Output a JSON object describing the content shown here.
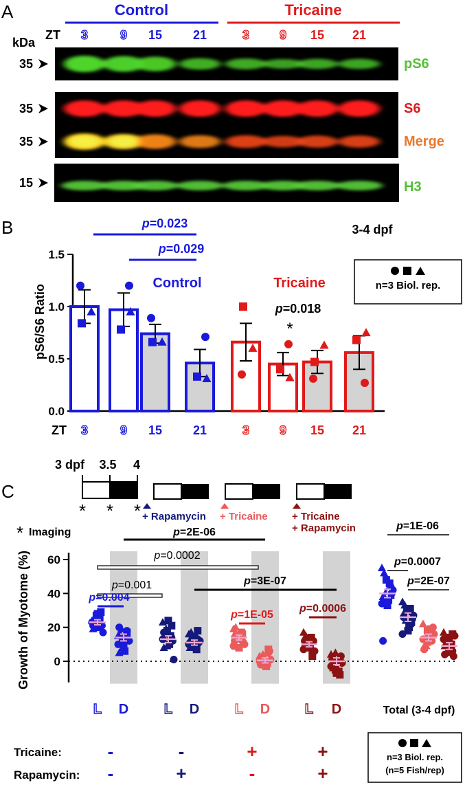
{
  "colors": {
    "control": "#1a1adb",
    "tricaine": "#e01a1a",
    "navy": "#151a7a",
    "salmon": "#ea5b5b",
    "darkred": "#8b1212",
    "green": "#55c13a",
    "merge_orange": "#e9782a",
    "h3_green": "#52c033",
    "gray_bg": "#d3d3d3",
    "mean_pink": "#f0a7cf"
  },
  "panel_a": {
    "letter": "A",
    "control_header": "Control",
    "tricaine_header": "Tricaine",
    "kda": "kDa",
    "zt": "ZT",
    "lanes": [
      {
        "label": "3",
        "group": "control",
        "outline": true
      },
      {
        "label": "9",
        "group": "control",
        "outline": true
      },
      {
        "label": "15",
        "group": "control",
        "outline": false
      },
      {
        "label": "21",
        "group": "control",
        "outline": false
      },
      {
        "label": "3",
        "group": "tricaine",
        "outline": true
      },
      {
        "label": "9",
        "group": "tricaine",
        "outline": true
      },
      {
        "label": "15",
        "group": "tricaine",
        "outline": false
      },
      {
        "label": "21",
        "group": "tricaine",
        "outline": false
      }
    ],
    "blots": [
      {
        "size": "35",
        "name": "pS6",
        "color": "#55c13a"
      },
      {
        "size": "35",
        "name": "S6",
        "color": "#e01a1a"
      },
      {
        "size": "35",
        "name": "Merge",
        "color": "#e9782a"
      },
      {
        "size": "15",
        "name": "H3",
        "color": "#52c033"
      }
    ]
  },
  "panel_b": {
    "letter": "B",
    "stage": "3-4 dpf",
    "legend_text": "n=3 Biol. rep.",
    "control_label": "Control",
    "tricaine_label": "Tricaine",
    "zt": "ZT",
    "yticks": [
      "0.0",
      "0.5",
      "1.0",
      "1.5"
    ],
    "sig": [
      {
        "text": "p=0.023"
      },
      {
        "text": "p=0.029"
      },
      {
        "text": "p=0.018"
      }
    ],
    "star": "*"
  },
  "panel_c": {
    "letter": "C",
    "timeline": {
      "t0": "3 dpf",
      "t1": "3.5",
      "t2": "4"
    },
    "treatments": [
      "+ Rapamycin",
      "+ Tricaine",
      "+ Tricaine",
      "+ Rapamycin"
    ],
    "imaging_label": "Imaging",
    "yticks": [
      "0",
      "20",
      "40",
      "60"
    ],
    "xlabels": [
      "L",
      "D",
      "L",
      "D",
      "L",
      "D",
      "L",
      "D"
    ],
    "total_label": "Total (3-4 dpf)",
    "tricaine_row": "Tricaine:",
    "rapamycin_row": "Rapamycin:",
    "tricaine_signs": [
      "-",
      "-",
      "+",
      "+"
    ],
    "rapamycin_signs": [
      "-",
      "+",
      "-",
      "+"
    ],
    "legend_line1": "n=3 Biol. rep.",
    "legend_line2": "(n=5 Fish/rep)",
    "sig": [
      {
        "text": "p=2E-06"
      },
      {
        "text": "p=0.0002"
      },
      {
        "text": "p=0.001"
      },
      {
        "text": "p=0.004"
      },
      {
        "text": "p=3E-07"
      },
      {
        "text": "p=1E-05"
      },
      {
        "text": "p=0.0006"
      },
      {
        "text": "p=1E-06"
      },
      {
        "text": "p=0.0007"
      },
      {
        "text": "p=2E-07"
      }
    ]
  },
  "chart_data": [
    {
      "type": "bar",
      "title": "3-4 dpf",
      "xlabel": "ZT",
      "ylabel": "pS6/S6 Ratio",
      "ylim": [
        0,
        1.5
      ],
      "categories": [
        "3",
        "9",
        "15",
        "21",
        "3",
        "9",
        "15",
        "21"
      ],
      "series": [
        {
          "name": "Control",
          "values": [
            1.0,
            0.97,
            0.74,
            0.46,
            null,
            null,
            null,
            null
          ],
          "sem": [
            0.16,
            0.16,
            0.09,
            0.13,
            null,
            null,
            null,
            null
          ]
        },
        {
          "name": "Tricaine",
          "values": [
            null,
            null,
            null,
            null,
            0.66,
            0.45,
            0.47,
            0.56
          ],
          "sem": [
            null,
            null,
            null,
            null,
            0.18,
            0.11,
            0.11,
            0.16
          ]
        }
      ],
      "points": [
        [
          {
            "shape": "circle",
            "y": 1.2
          },
          {
            "shape": "square",
            "y": 0.84
          },
          {
            "shape": "triangle",
            "y": 0.95
          }
        ],
        [
          {
            "shape": "circle",
            "y": 1.2
          },
          {
            "shape": "square",
            "y": 0.78
          },
          {
            "shape": "triangle",
            "y": 0.95
          }
        ],
        [
          {
            "shape": "circle",
            "y": 0.89
          },
          {
            "shape": "square",
            "y": 0.66
          },
          {
            "shape": "triangle",
            "y": 0.66
          }
        ],
        [
          {
            "shape": "circle",
            "y": 0.71
          },
          {
            "shape": "square",
            "y": 0.33
          },
          {
            "shape": "triangle",
            "y": 0.31
          }
        ],
        [
          {
            "shape": "circle",
            "y": 0.35
          },
          {
            "shape": "square",
            "y": 1.0
          },
          {
            "shape": "triangle",
            "y": 0.6
          }
        ],
        [
          {
            "shape": "circle",
            "y": 0.64
          },
          {
            "shape": "square",
            "y": 0.4
          },
          {
            "shape": "triangle",
            "y": 0.32
          }
        ],
        [
          {
            "shape": "circle",
            "y": 0.31
          },
          {
            "shape": "square",
            "y": 0.47
          },
          {
            "shape": "triangle",
            "y": 0.63
          }
        ],
        [
          {
            "shape": "circle",
            "y": 0.27
          },
          {
            "shape": "square",
            "y": 0.68
          },
          {
            "shape": "triangle",
            "y": 0.75
          }
        ]
      ],
      "filled_bars": [
        false,
        false,
        true,
        true,
        false,
        false,
        true,
        true
      ]
    },
    {
      "type": "scatter",
      "ylabel": "Growth of Myotome (%)",
      "ylim": [
        -10,
        60
      ],
      "categories": [
        "L",
        "D",
        "L",
        "D",
        "L",
        "D",
        "L",
        "D",
        "Total",
        "Total",
        "Total",
        "Total"
      ],
      "groups": [
        {
          "label": "L",
          "color": "#1a1adb",
          "mean": 23,
          "sem": 1.5
        },
        {
          "label": "D",
          "color": "#1a1adb",
          "mean": 14,
          "sem": 2.0
        },
        {
          "label": "L",
          "color": "#151a7a",
          "mean": 13,
          "sem": 2.0
        },
        {
          "label": "D",
          "color": "#151a7a",
          "mean": 11,
          "sem": 1.5
        },
        {
          "label": "L",
          "color": "#ea5b5b",
          "mean": 14,
          "sem": 1.5
        },
        {
          "label": "D",
          "color": "#ea5b5b",
          "mean": 0.5,
          "sem": 1.5
        },
        {
          "label": "L",
          "color": "#8b1212",
          "mean": 10,
          "sem": 1.5
        },
        {
          "label": "D",
          "color": "#8b1212",
          "mean": 0,
          "sem": 2.0
        },
        {
          "label": "Total",
          "color": "#1a1adb",
          "mean": 40,
          "sem": 2.5
        },
        {
          "label": "Total",
          "color": "#151a7a",
          "mean": 26,
          "sem": 2.5
        },
        {
          "label": "Total",
          "color": "#ea5b5b",
          "mean": 14,
          "sem": 2.0
        },
        {
          "label": "Total",
          "color": "#8b1212",
          "mean": 9,
          "sem": 2.0
        }
      ],
      "points": [
        [
          24,
          27,
          22,
          19,
          28,
          21,
          25,
          20,
          17,
          24,
          26,
          23,
          22,
          29,
          21
        ],
        [
          15,
          11,
          18,
          5,
          9,
          13,
          16,
          6,
          12,
          19,
          14,
          10,
          8,
          17,
          20
        ],
        [
          23,
          18,
          14,
          8,
          24,
          12,
          16,
          10,
          1,
          19,
          15,
          13,
          9,
          21,
          17
        ],
        [
          16,
          10,
          13,
          8,
          14,
          11,
          17,
          9,
          12,
          15,
          7,
          10,
          14,
          18,
          11
        ],
        [
          19,
          14,
          12,
          16,
          8,
          11,
          20,
          15,
          10,
          13,
          17,
          9,
          14,
          16,
          12
        ],
        [
          3,
          -1,
          5,
          0,
          -2,
          6,
          2,
          -3,
          1,
          4,
          -1,
          0,
          2,
          7,
          -2
        ],
        [
          17,
          13,
          5,
          10,
          8,
          12,
          15,
          9,
          6,
          11,
          14,
          7,
          10,
          3,
          12
        ],
        [
          4,
          -5,
          1,
          -2,
          -7,
          3,
          -4,
          0,
          -1,
          2,
          -6,
          -3,
          5,
          -8,
          1
        ],
        [
          55,
          48,
          44,
          38,
          33,
          40,
          52,
          36,
          42,
          37,
          46,
          34,
          41,
          39,
          12
        ],
        [
          35,
          30,
          22,
          28,
          18,
          25,
          33,
          20,
          27,
          24,
          31,
          16,
          29,
          23,
          26
        ],
        [
          22,
          18,
          12,
          8,
          15,
          20,
          10,
          14,
          16,
          9,
          19,
          13,
          11,
          17,
          7
        ],
        [
          17,
          12,
          6,
          9,
          14,
          3,
          11,
          8,
          15,
          5,
          10,
          13,
          7,
          16,
          4
        ]
      ]
    }
  ]
}
